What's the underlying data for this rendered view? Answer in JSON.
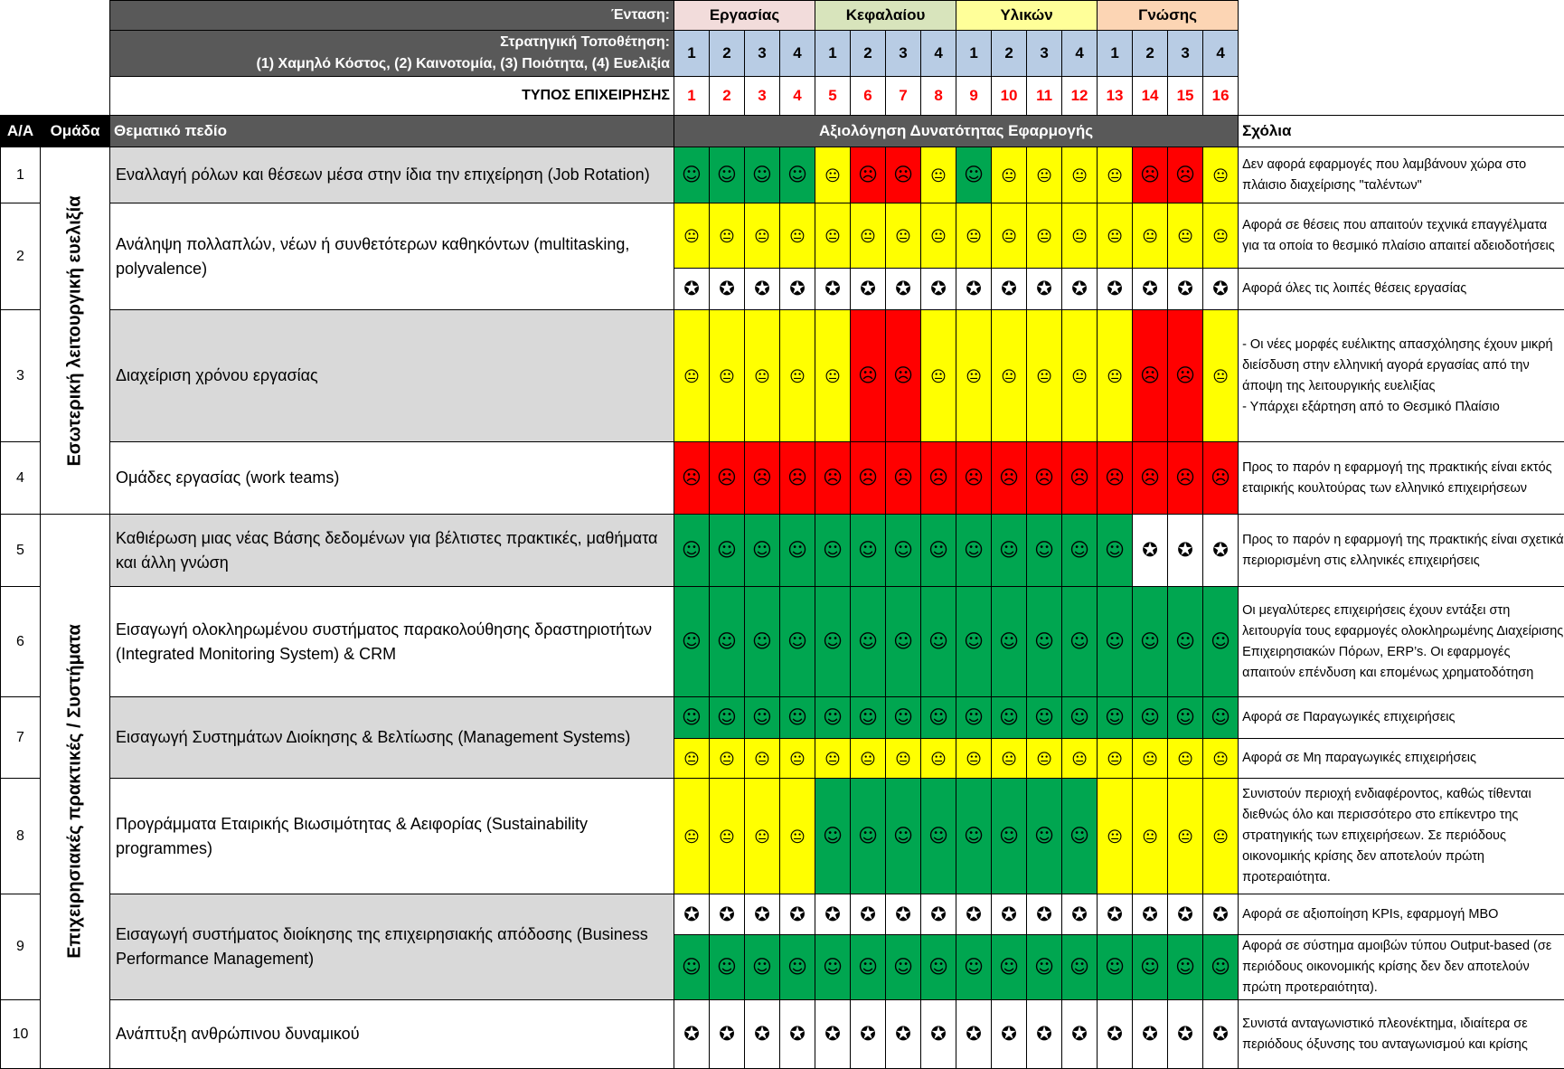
{
  "header": {
    "intensity_label": "Ένταση:",
    "intensity": [
      "Εργασίας",
      "Κεφαλαίου",
      "Υλικών",
      "Γνώσης"
    ],
    "intensity_colors": [
      "#F2DCDB",
      "#D8E4BC",
      "#FFFF99",
      "#FCD5B4"
    ],
    "strategic_label_1": "Στρατηγική Τοποθέτηση:",
    "strategic_label_2": "(1) Χαμηλό Κόστος, (2) Καινοτομία, (3) Ποιότητα, (4) Ευελιξία",
    "strategic_numbers": [
      "1",
      "2",
      "3",
      "4",
      "1",
      "2",
      "3",
      "4",
      "1",
      "2",
      "3",
      "4",
      "1",
      "2",
      "3",
      "4"
    ],
    "business_type_label": "ΤΥΠΟΣ ΕΠΙΧΕΙΡΗΣΗΣ",
    "business_type_numbers": [
      "1",
      "2",
      "3",
      "4",
      "5",
      "6",
      "7",
      "8",
      "9",
      "10",
      "11",
      "12",
      "13",
      "14",
      "15",
      "16"
    ]
  },
  "columns": {
    "aa": "Α/Α",
    "group": "Ομάδα",
    "field": "Θεματικό πεδίο",
    "assessment": "Αξιολόγηση Δυνατότητας Εφαρμογής",
    "comments": "Σχόλια"
  },
  "legend_icons": {
    "G": "smiley-icon",
    "Y": "neutral-face-icon",
    "R": "frowny-face-icon",
    "W": "star-icon"
  },
  "groups": [
    "Εσωτερική λειτουργική ευελιξία",
    "Επιχειρησιακές πρακτικές / Συστήματα"
  ],
  "rows": [
    {
      "num": "1",
      "title": "Εναλλαγή ρόλων και θέσεων μέσα στην ίδια την επιχείρηση (Job Rotation)",
      "subs": [
        {
          "cells": "GGGGYRRYGYYYYRRY",
          "comment": "Δεν αφορά εφαρμογές που λαμβάνουν χώρα στο πλάισιο   διαχείρισης \"ταλέντων\""
        }
      ]
    },
    {
      "num": "2",
      "title": "Ανάληψη πολλαπλών, νέων ή συνθετότερων καθηκόντων (multitasking, polyvalence)",
      "subs": [
        {
          "cells": "YYYYYYYYYYYYYYYY",
          "comment": "Αφορά σε θέσεις που απαιτούν τεχνικά επαγγέλματα για τα οποία το θεσμικό πλαίσιο απαιτεί αδειοδοτήσεις"
        },
        {
          "cells": "WWWWWWWWWWWWWWWW",
          "comment": "Αφορά όλες τις λοιπές θέσεις εργασίας"
        }
      ]
    },
    {
      "num": "3",
      "title": "Διαχείριση χρόνου εργασίας",
      "subs": [
        {
          "cells": "YYYYYRRYYYYYYRRY",
          "comment": "- Οι νέες μορφές ευέλικτης απασχόλησης έχουν μικρή διείσδυση στην ελληνική αγορά εργασίας από την άποψη της  λειτουργικής ευελιξίας\n- Υπάρχει εξάρτηση από το Θεσμικό Πλαίσιο"
        }
      ]
    },
    {
      "num": "4",
      "title": "Ομάδες εργασίας (work teams)",
      "subs": [
        {
          "cells": "RRRRRRRRRRRRRRRR",
          "comment": "Προς το παρόν η εφαρμογή της πρακτικής είναι εκτός εταιρικής κουλτούρας των ελληνικό επιχειρήσεων"
        }
      ]
    },
    {
      "num": "5",
      "title": "Καθιέρωση μιας νέας Βάσης δεδομένων για βέλτιστες πρακτικές, μαθήματα και άλλη γνώση",
      "subs": [
        {
          "cells": "GGGGGGGGGGGGGWWW",
          "comment": "Προς το παρόν η εφαρμογή της πρακτικής είναι σχετικά περιορισμένη στις ελληνικές επιχειρήσεις"
        }
      ]
    },
    {
      "num": "6",
      "title": "Εισαγωγή ολοκληρωμένου συστήματος παρακολούθησης δραστηριοτήτων (Integrated Monitoring System) & CRM",
      "subs": [
        {
          "cells": "GGGGGGGGGGGGGGGG",
          "comment": "Οι μεγαλύτερες επιχειρήσεις έχουν εντάξει στη λειτουργία τους εφαρμογές ολοκληρωμένης Διαχείρισης Επιχειρησιακών Πόρων, ERP’s.  Οι εφαρμογές απαιτούν επένδυση και επομένως χρηματοδότηση"
        }
      ]
    },
    {
      "num": "7",
      "title": "Εισαγωγή Συστημάτων Διοίκησης & Βελτίωσης (Management Systems)",
      "subs": [
        {
          "cells": "GGGGGGGGGGGGGGGG",
          "comment": "Αφορά σε Παραγωγικές επιχειρήσεις"
        },
        {
          "cells": "YYYYYYYYYYYYYYYY",
          "comment": "Αφορά σε Μη παραγωγικές επιχειρήσεις"
        }
      ]
    },
    {
      "num": "8",
      "title": "Προγράμματα Εταιρικής Βιωσιμότητας & Αειφορίας (Sustainability programmes)",
      "subs": [
        {
          "cells": "YYYYGGGGGGGGYYYY",
          "comment": "Συνιστούν περιοχή ενδιαφέροντος, καθώς τίθενται διεθνώς όλο και περισσότερο στο επίκεντρο της στρατηγικής των επιχειρήσεων. Σε περιόδους οικονομικής κρίσης δεν αποτελούν πρώτη προτεραιότητα."
        }
      ]
    },
    {
      "num": "9",
      "title": " Εισαγωγή συστήματος διοίκησης της επιχειρησιακής απόδοσης (Business Performance Management)",
      "subs": [
        {
          "cells": "WWWWWWWWWWWWWWWW",
          "comment": "Αφορά σε αξιοποίηση KPIs, εφαρμογή  MBO"
        },
        {
          "cells": "GGGGGGGGGGGGGGGG",
          "comment": "Αφορά σε σύστημα αμοιβών τύπου Output-based (σε περιόδους οικονομικής κρίσης δεν δεν αποτελούν πρώτη προτεραιότητα)."
        }
      ]
    },
    {
      "num": "10",
      "title": "Ανάπτυξη ανθρώπινου δυναμικού",
      "subs": [
        {
          "cells": "WWWWWWWWWWWWWWWW",
          "comment": "Συνιστά ανταγωνιστικό πλεονέκτημα, ιδιαίτερα σε περιόδους όξυνσης του ανταγωνισμού και κρίσης"
        }
      ]
    }
  ]
}
